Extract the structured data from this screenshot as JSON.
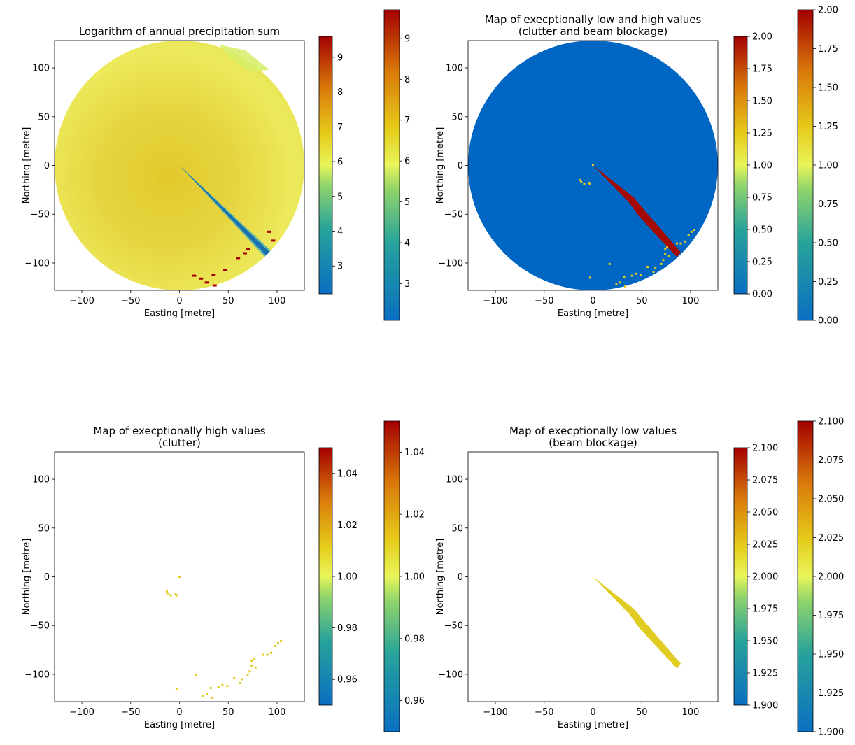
{
  "figure": {
    "x_axis_label": "Easting [metre]",
    "y_axis_label": "Northing [metre]"
  },
  "colors": {
    "cmap_low": "#0a6fc2",
    "cmap_mid": "#e8ef4b",
    "cmap_high": "#a30000",
    "disk_fill": "#e6d84a",
    "mask_blue": "#0066c3",
    "clutter_yellow": "#e0cc22",
    "blockage_red": "#a50a00",
    "block_dark": "#1a6fae"
  },
  "chart_data": [
    {
      "type": "heatmap",
      "id": "p1",
      "title": "Logarithm of annual precipitation sum",
      "xlabel": "Easting [metre]",
      "ylabel": "Northing [metre]",
      "xlim": [
        -128,
        128
      ],
      "ylim": [
        -128,
        128
      ],
      "xticks": [
        "-100",
        "-50",
        "0",
        "50",
        "100"
      ],
      "yticks": [
        "100",
        "50",
        "0",
        "-50",
        "-100"
      ],
      "colorbars": [
        {
          "range": [
            2.2,
            9.6
          ],
          "ticks": [
            "9",
            "8",
            "7",
            "6",
            "5",
            "4",
            "3"
          ]
        },
        {
          "range": [
            2.1,
            9.7
          ],
          "ticks": [
            "9",
            "8",
            "7",
            "6",
            "5",
            "4",
            "3"
          ]
        }
      ],
      "radius": 128,
      "beam_blockage_sector": {
        "azimuth_deg": 135,
        "range": [
          0,
          128
        ]
      },
      "clutter_blocks_range_xy": [
        [
          92,
          -68
        ],
        [
          96,
          -77
        ],
        [
          70,
          -86
        ],
        [
          67,
          -90
        ],
        [
          60,
          -95
        ],
        [
          15,
          -113
        ],
        [
          22,
          -116
        ],
        [
          35,
          -112
        ],
        [
          47,
          -107
        ],
        [
          28,
          -120
        ],
        [
          36,
          -123
        ]
      ]
    },
    {
      "type": "heatmap",
      "id": "p2",
      "title": "Map of execptionally low and high values\n(clutter and beam blockage)",
      "xlabel": "Easting [metre]",
      "ylabel": "Northing [metre]",
      "xlim": [
        -128,
        128
      ],
      "ylim": [
        -128,
        128
      ],
      "xticks": [
        "-100",
        "-50",
        "0",
        "50",
        "100"
      ],
      "yticks": [
        "100",
        "50",
        "0",
        "-50",
        "-100"
      ],
      "colorbars": [
        {
          "range": [
            0,
            2
          ],
          "ticks": [
            "2.00",
            "1.75",
            "1.50",
            "1.25",
            "1.00",
            "0.75",
            "0.50",
            "0.25",
            "0.00"
          ]
        },
        {
          "range": [
            0,
            2
          ],
          "ticks": [
            "2.00",
            "1.75",
            "1.50",
            "1.25",
            "1.00",
            "0.75",
            "0.50",
            "0.25",
            "0.00"
          ]
        }
      ],
      "values": {
        "background": 0,
        "clutter": 1,
        "beam_blockage": 2
      }
    },
    {
      "type": "heatmap",
      "id": "p3",
      "title": "Map of execptionally high values\n(clutter)",
      "xlabel": "Easting [metre]",
      "ylabel": "Northing [metre]",
      "xlim": [
        -128,
        128
      ],
      "ylim": [
        -128,
        128
      ],
      "xticks": [
        "-100",
        "-50",
        "0",
        "50",
        "100"
      ],
      "yticks": [
        "100",
        "50",
        "0",
        "-50",
        "-100"
      ],
      "colorbars": [
        {
          "range": [
            0.95,
            1.05
          ],
          "ticks": [
            "1.04",
            "1.02",
            "1.00",
            "0.98",
            "0.96"
          ]
        },
        {
          "range": [
            0.95,
            1.05
          ],
          "ticks": [
            "1.04",
            "1.02",
            "1.00",
            "0.98",
            "0.96"
          ]
        }
      ],
      "clutter_points_xy": [
        [
          0,
          0
        ],
        [
          -12,
          -17
        ],
        [
          -9,
          -19
        ],
        [
          -4,
          -18
        ],
        [
          -3,
          -19
        ],
        [
          -13,
          -15
        ],
        [
          94,
          -78
        ],
        [
          98,
          -71
        ],
        [
          101,
          -68
        ],
        [
          104,
          -66
        ],
        [
          90,
          -80
        ],
        [
          86,
          -80
        ],
        [
          76,
          -84
        ],
        [
          74,
          -91
        ],
        [
          72,
          -97
        ],
        [
          78,
          -93
        ],
        [
          70,
          -101
        ],
        [
          64,
          -105
        ],
        [
          56,
          -104
        ],
        [
          44,
          -111
        ],
        [
          40,
          -113
        ],
        [
          32,
          -114
        ],
        [
          28,
          -120
        ],
        [
          33,
          -124
        ],
        [
          24,
          -122
        ],
        [
          17,
          -101
        ],
        [
          -3,
          -115
        ],
        [
          49,
          -112
        ],
        [
          62,
          -109
        ],
        [
          74,
          -86
        ]
      ]
    },
    {
      "type": "heatmap",
      "id": "p4",
      "title": "Map of execptionally low values\n(beam blockage)",
      "xlabel": "Easting [metre]",
      "ylabel": "Northing [metre]",
      "xlim": [
        -128,
        128
      ],
      "ylim": [
        -128,
        128
      ],
      "xticks": [
        "-100",
        "-50",
        "0",
        "50",
        "100"
      ],
      "yticks": [
        "100",
        "50",
        "0",
        "-50",
        "-100"
      ],
      "colorbars": [
        {
          "range": [
            1.9,
            2.1
          ],
          "ticks": [
            "2.100",
            "2.075",
            "2.050",
            "2.025",
            "2.000",
            "1.975",
            "1.950",
            "1.925",
            "1.900"
          ]
        },
        {
          "range": [
            1.9,
            2.1
          ],
          "ticks": [
            "2.100",
            "2.075",
            "2.050",
            "2.025",
            "2.000",
            "1.975",
            "1.950",
            "1.925",
            "1.900"
          ]
        }
      ],
      "beam_blockage_polygon_xy": [
        [
          0,
          0
        ],
        [
          42,
          -33
        ],
        [
          52,
          -45
        ],
        [
          90,
          -89
        ],
        [
          86,
          -94
        ],
        [
          47,
          -52
        ],
        [
          37,
          -38
        ]
      ]
    }
  ]
}
